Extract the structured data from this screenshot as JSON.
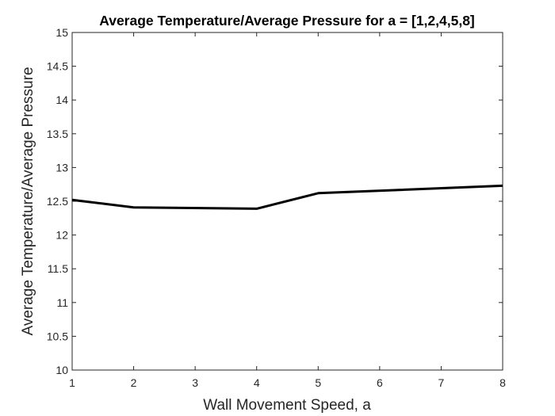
{
  "chart_data": {
    "type": "line",
    "title": "Average Temperature/Average Pressure for a = [1,2,4,5,8]",
    "xlabel": "Wall Movement Speed, a",
    "ylabel": "Average Temperature/Average Pressure",
    "xlim": [
      1,
      8
    ],
    "ylim": [
      10,
      15
    ],
    "xticks": [
      1,
      2,
      3,
      4,
      5,
      6,
      7,
      8
    ],
    "xtick_labels": [
      "1",
      "2",
      "3",
      "4",
      "5",
      "6",
      "7",
      "8"
    ],
    "yticks": [
      10,
      10.5,
      11,
      11.5,
      12,
      12.5,
      13,
      13.5,
      14,
      14.5,
      15
    ],
    "ytick_labels": [
      "10",
      "10.5",
      "11",
      "11.5",
      "12",
      "12.5",
      "13",
      "13.5",
      "14",
      "14.5",
      "15"
    ],
    "grid": false,
    "series": [
      {
        "x": [
          1,
          2,
          4,
          5,
          8
        ],
        "values": [
          12.52,
          12.41,
          12.39,
          12.62,
          12.73
        ],
        "color": "#000000"
      }
    ]
  }
}
